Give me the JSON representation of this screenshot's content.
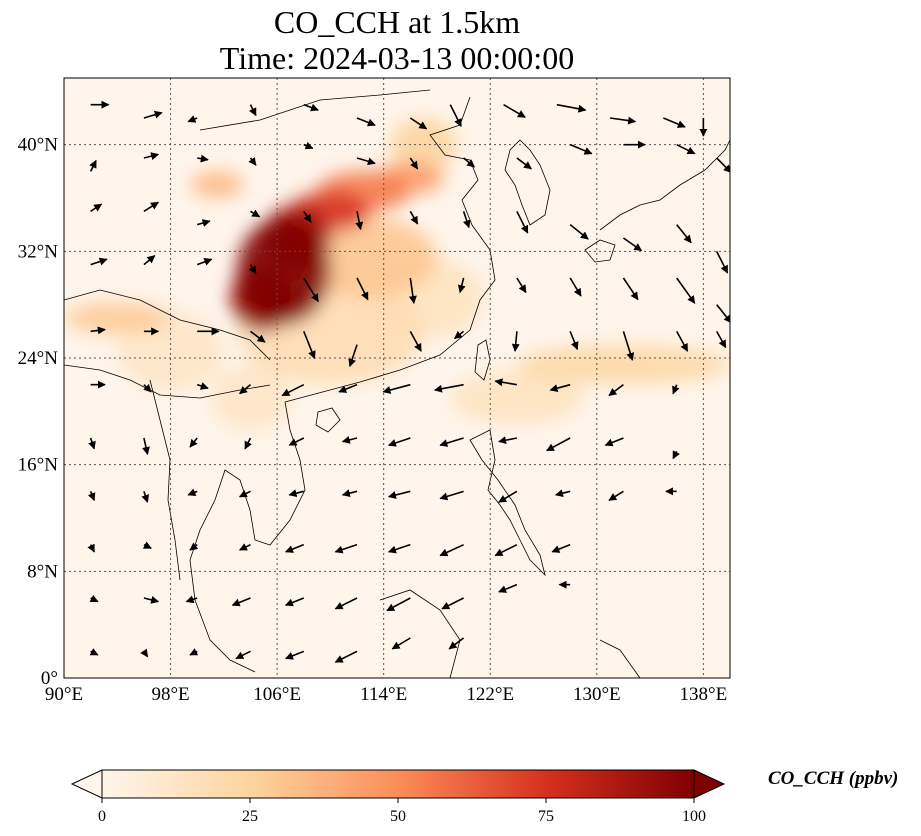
{
  "title": {
    "line1": "CO_CCH at 1.5km",
    "line2": "Time: 2024-03-13 00:00:00"
  },
  "map": {
    "lon_range": [
      90,
      140
    ],
    "lat_range": [
      0,
      45
    ],
    "lon_ticks": [
      {
        "value": 90,
        "label": "90°E"
      },
      {
        "value": 98,
        "label": "98°E"
      },
      {
        "value": 106,
        "label": "106°E"
      },
      {
        "value": 114,
        "label": "114°E"
      },
      {
        "value": 122,
        "label": "122°E"
      },
      {
        "value": 130,
        "label": "130°E"
      },
      {
        "value": 138,
        "label": "138°E"
      }
    ],
    "lat_ticks": [
      {
        "value": 0,
        "label": "0°"
      },
      {
        "value": 8,
        "label": "8°N"
      },
      {
        "value": 16,
        "label": "16°N"
      },
      {
        "value": 24,
        "label": "24°N"
      },
      {
        "value": 32,
        "label": "32°N"
      },
      {
        "value": 40,
        "label": "40°N"
      }
    ],
    "gridlines": true,
    "colormap": [
      "#fff5eb",
      "#fdd49e",
      "#fc8d59",
      "#d7301f",
      "#7f0000"
    ],
    "colorbar": {
      "min": 0,
      "max": 100,
      "ticks": [
        {
          "value": 0,
          "label": "0"
        },
        {
          "value": 25,
          "label": "25"
        },
        {
          "value": 50,
          "label": "50"
        },
        {
          "value": 75,
          "label": "75"
        },
        {
          "value": 100,
          "label": "100"
        }
      ],
      "label": "CO_CCH (ppbv)",
      "extend": "both"
    },
    "co_plumes": [
      {
        "lon": 106.5,
        "lat": 30.5,
        "rlon": 3.5,
        "rlat": 4.0,
        "value": 100
      },
      {
        "lon": 107.5,
        "lat": 33.0,
        "rlon": 2.5,
        "rlat": 2.5,
        "value": 90
      },
      {
        "lon": 110.0,
        "lat": 35.0,
        "rlon": 3.0,
        "rlat": 1.5,
        "value": 75
      },
      {
        "lon": 105.0,
        "lat": 28.5,
        "rlon": 2.5,
        "rlat": 2.5,
        "value": 95
      },
      {
        "lon": 112.5,
        "lat": 36.5,
        "rlon": 3.5,
        "rlat": 1.5,
        "value": 55
      },
      {
        "lon": 116.0,
        "lat": 37.5,
        "rlon": 2.5,
        "rlat": 1.2,
        "value": 45
      },
      {
        "lon": 113.0,
        "lat": 31.5,
        "rlon": 5.0,
        "rlat": 3.0,
        "value": 30
      },
      {
        "lon": 110.0,
        "lat": 26.0,
        "rlon": 7.0,
        "rlat": 4.0,
        "value": 18
      },
      {
        "lon": 117.5,
        "lat": 28.5,
        "rlon": 4.0,
        "rlat": 3.0,
        "value": 14
      },
      {
        "lon": 101.5,
        "lat": 37.0,
        "rlon": 2.0,
        "rlat": 1.0,
        "value": 35
      },
      {
        "lon": 94.0,
        "lat": 27.0,
        "rlon": 4.0,
        "rlat": 1.2,
        "value": 28
      },
      {
        "lon": 98.0,
        "lat": 24.5,
        "rlon": 4.0,
        "rlat": 3.0,
        "value": 12
      },
      {
        "lon": 132.0,
        "lat": 23.5,
        "rlon": 8.0,
        "rlat": 1.5,
        "value": 22
      },
      {
        "lon": 124.0,
        "lat": 21.0,
        "rlon": 5.0,
        "rlat": 2.0,
        "value": 14
      },
      {
        "lon": 104.0,
        "lat": 21.0,
        "rlon": 3.0,
        "rlat": 2.5,
        "value": 12
      },
      {
        "lon": 117.0,
        "lat": 40.0,
        "rlon": 2.5,
        "rlat": 2.0,
        "value": 25
      }
    ],
    "wind_vectors": [
      [
        92,
        43,
        1,
        0
      ],
      [
        96,
        42,
        1,
        0.3
      ],
      [
        100,
        42,
        -0.5,
        -0.2
      ],
      [
        104,
        43,
        0.3,
        -0.6
      ],
      [
        108,
        43,
        0.8,
        -0.3
      ],
      [
        112,
        42,
        1,
        -0.4
      ],
      [
        116,
        42,
        0.9,
        -0.6
      ],
      [
        119,
        43,
        0.6,
        -1.2
      ],
      [
        123,
        43,
        1.2,
        -0.7
      ],
      [
        127,
        43,
        1.6,
        -0.3
      ],
      [
        131,
        42,
        1.4,
        -0.2
      ],
      [
        135,
        42,
        1.2,
        -0.5
      ],
      [
        138,
        42,
        0,
        -1
      ],
      [
        92,
        38,
        0.3,
        0.6
      ],
      [
        96,
        39,
        0.8,
        0.2
      ],
      [
        100,
        39,
        0.6,
        -0.1
      ],
      [
        104,
        39,
        0.3,
        -0.4
      ],
      [
        108,
        40,
        0.5,
        -0.2
      ],
      [
        112,
        39,
        1,
        -0.3
      ],
      [
        116,
        39,
        0.4,
        -0.6
      ],
      [
        120,
        39,
        0.6,
        -0.5
      ],
      [
        124,
        39,
        0.8,
        -0.6
      ],
      [
        128,
        40,
        1.2,
        -0.5
      ],
      [
        132,
        40,
        1.2,
        0
      ],
      [
        136,
        40,
        1,
        -0.5
      ],
      [
        139,
        39,
        0.8,
        -0.8
      ],
      [
        92,
        35,
        0.6,
        0.4
      ],
      [
        96,
        35,
        0.8,
        0.5
      ],
      [
        100,
        34,
        0.7,
        0.2
      ],
      [
        104,
        35,
        0.5,
        -0.3
      ],
      [
        108,
        35,
        0.4,
        -0.6
      ],
      [
        112,
        35,
        0.2,
        -1.0
      ],
      [
        116,
        35,
        0.4,
        -0.7
      ],
      [
        120,
        35,
        0.3,
        -0.9
      ],
      [
        124,
        35,
        0.6,
        -1.2
      ],
      [
        128,
        34,
        1.0,
        -0.8
      ],
      [
        132,
        33,
        1.0,
        -0.7
      ],
      [
        136,
        34,
        0.8,
        -1.0
      ],
      [
        139,
        32,
        0.6,
        -1.2
      ],
      [
        92,
        31,
        0.9,
        0.3
      ],
      [
        96,
        31,
        0.6,
        0.5
      ],
      [
        100,
        31,
        0.8,
        0.3
      ],
      [
        104,
        31,
        0.3,
        -0.5
      ],
      [
        108,
        30,
        0.8,
        -1.3
      ],
      [
        112,
        30,
        0.6,
        -1.2
      ],
      [
        116,
        30,
        0.2,
        -1.4
      ],
      [
        120,
        30,
        -0.2,
        -0.8
      ],
      [
        124,
        30,
        0.5,
        -0.8
      ],
      [
        128,
        30,
        0.6,
        -1.0
      ],
      [
        132,
        30,
        0.8,
        -1.2
      ],
      [
        136,
        30,
        1.0,
        -1.4
      ],
      [
        139,
        28,
        0.8,
        -1.0
      ],
      [
        92,
        26,
        0.8,
        0.1
      ],
      [
        96,
        26,
        0.8,
        0
      ],
      [
        100,
        26,
        1.2,
        0
      ],
      [
        104,
        26,
        0.8,
        -0.6
      ],
      [
        108,
        26,
        0.6,
        -1.5
      ],
      [
        112,
        25,
        -0.4,
        -1.2
      ],
      [
        116,
        26,
        0.6,
        -1.1
      ],
      [
        120,
        26,
        -0.5,
        -0.4
      ],
      [
        124,
        26,
        -0.1,
        -1.1
      ],
      [
        128,
        26,
        0.4,
        -1.0
      ],
      [
        132,
        26,
        0.5,
        -1.6
      ],
      [
        136,
        26,
        0.6,
        -1.1
      ],
      [
        139,
        26,
        0.5,
        -0.9
      ],
      [
        92,
        22,
        0.8,
        0
      ],
      [
        96,
        22,
        0.4,
        -0.4
      ],
      [
        100,
        22,
        0.6,
        -0.2
      ],
      [
        104,
        22,
        -0.6,
        -0.5
      ],
      [
        108,
        22,
        -1.2,
        -0.6
      ],
      [
        112,
        22,
        -1.0,
        -0.4
      ],
      [
        116,
        22,
        -1.5,
        -0.4
      ],
      [
        120,
        22,
        -1.6,
        -0.3
      ],
      [
        124,
        22,
        -1.2,
        0.2
      ],
      [
        128,
        22,
        -1.1,
        -0.3
      ],
      [
        132,
        22,
        -0.8,
        -0.6
      ],
      [
        136,
        22,
        -0.2,
        -0.5
      ],
      [
        92,
        18,
        0.2,
        -0.6
      ],
      [
        96,
        18,
        0.2,
        -0.9
      ],
      [
        100,
        18,
        -0.4,
        -0.5
      ],
      [
        104,
        18,
        -0.3,
        -0.6
      ],
      [
        108,
        18,
        -0.8,
        -0.4
      ],
      [
        112,
        18,
        -0.8,
        -0.2
      ],
      [
        116,
        18,
        -1.2,
        -0.4
      ],
      [
        120,
        18,
        -1.3,
        -0.4
      ],
      [
        124,
        18,
        -1.0,
        -0.2
      ],
      [
        128,
        18,
        -1.3,
        -0.7
      ],
      [
        132,
        18,
        -1.0,
        -0.4
      ],
      [
        136,
        17,
        -0.2,
        -0.4
      ],
      [
        92,
        14,
        0.2,
        -0.5
      ],
      [
        96,
        14,
        0.2,
        -0.6
      ],
      [
        100,
        14,
        -0.5,
        -0.2
      ],
      [
        104,
        14,
        -0.6,
        -0.3
      ],
      [
        108,
        14,
        -0.8,
        -0.2
      ],
      [
        112,
        14,
        -0.8,
        -0.2
      ],
      [
        116,
        14,
        -1.2,
        -0.3
      ],
      [
        120,
        14,
        -1.3,
        -0.4
      ],
      [
        124,
        14,
        -1.0,
        -0.6
      ],
      [
        128,
        14,
        -0.8,
        -0.2
      ],
      [
        132,
        14,
        -0.8,
        -0.5
      ],
      [
        136,
        14,
        -0.6,
        0
      ],
      [
        92,
        10,
        0.2,
        -0.4
      ],
      [
        96,
        10,
        0.4,
        -0.2
      ],
      [
        100,
        10,
        -0.4,
        -0.3
      ],
      [
        104,
        10,
        -0.6,
        -0.3
      ],
      [
        108,
        10,
        -1.0,
        -0.4
      ],
      [
        112,
        10,
        -1.2,
        -0.4
      ],
      [
        116,
        10,
        -1.2,
        -0.4
      ],
      [
        120,
        10,
        -1.3,
        -0.6
      ],
      [
        124,
        10,
        -1.2,
        -0.6
      ],
      [
        128,
        10,
        -1.0,
        -0.4
      ],
      [
        92,
        6,
        0.4,
        -0.2
      ],
      [
        96,
        6,
        0.8,
        -0.2
      ],
      [
        100,
        6,
        -0.6,
        -0.2
      ],
      [
        104,
        6,
        -1.0,
        -0.4
      ],
      [
        108,
        6,
        -1.0,
        -0.4
      ],
      [
        112,
        6,
        -1.2,
        -0.6
      ],
      [
        116,
        6,
        -1.3,
        -0.7
      ],
      [
        120,
        6,
        -1.2,
        -0.6
      ],
      [
        124,
        7,
        -1.0,
        -0.4
      ],
      [
        128,
        7,
        -0.6,
        0
      ],
      [
        92,
        2,
        0.4,
        -0.2
      ],
      [
        96,
        2,
        0.2,
        -0.3
      ],
      [
        100,
        2,
        -0.4,
        -0.2
      ],
      [
        104,
        2,
        -0.8,
        -0.4
      ],
      [
        108,
        2,
        -1.0,
        -0.4
      ],
      [
        112,
        2,
        -1.2,
        -0.6
      ],
      [
        116,
        3,
        -1.0,
        -0.6
      ],
      [
        120,
        3,
        -0.8,
        -0.6
      ]
    ]
  }
}
